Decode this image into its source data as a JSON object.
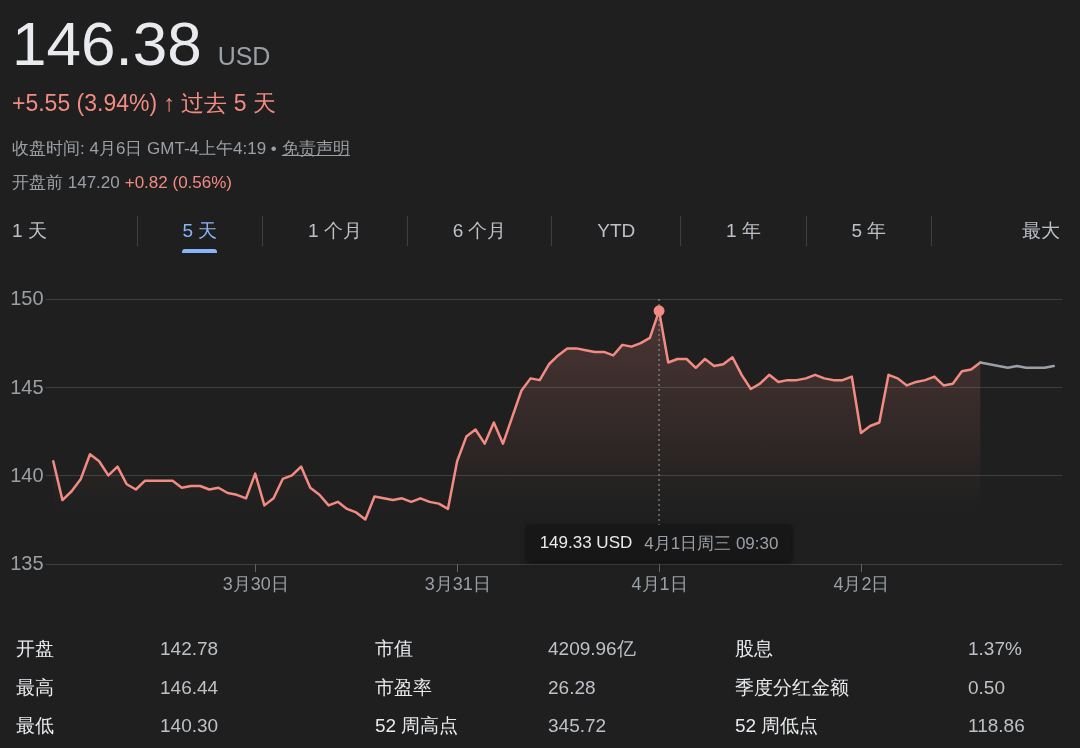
{
  "chart_data": {
    "type": "area",
    "title": "146.38 USD",
    "subtitle": "+5.55 (3.94%) ↑ 过去 5 天",
    "annotations": [
      "收盘时间: 4月6日 GMT-4上午4:19 •",
      "免责声明",
      "开盘前 147.20",
      "+0.82 (0.56%)",
      "1 天",
      "5 天",
      "1 个月",
      "6 个月",
      "YTD",
      "1 年",
      "5 年",
      "最大",
      "149.33 USD",
      "4月1日周三 09:30",
      "开盘",
      "142.78",
      "市值",
      "4209.96亿",
      "股息",
      "1.37%",
      "最高",
      "146.44",
      "市盈率",
      "26.28",
      "季度分红金额",
      "0.50",
      "最低",
      "140.30",
      "52 周高点",
      "345.72",
      "52 周低点",
      "118.86"
    ],
    "categories": [
      null,
      null,
      null,
      null,
      null,
      null,
      null,
      null,
      null,
      null,
      null,
      null,
      null,
      null,
      null,
      null,
      null,
      null,
      null,
      null,
      null,
      null,
      "3月30日",
      null,
      null,
      null,
      null,
      null,
      null,
      null,
      null,
      null,
      null,
      null,
      null,
      null,
      null,
      null,
      null,
      null,
      null,
      null,
      null,
      null,
      "3月31日",
      null,
      null,
      null,
      null,
      null,
      null,
      null,
      null,
      null,
      null,
      null,
      null,
      null,
      null,
      null,
      null,
      null,
      null,
      null,
      null,
      null,
      "4月1日",
      null,
      null,
      null,
      null,
      null,
      null,
      null,
      null,
      null,
      null,
      null,
      null,
      null,
      null,
      null,
      null,
      null,
      null,
      null,
      null,
      null,
      "4月2日",
      null,
      null,
      null,
      null,
      null,
      null,
      null,
      null,
      null,
      null,
      null,
      null,
      null,
      null,
      null,
      null,
      null,
      null,
      null,
      null,
      null
    ],
    "ylim": [
      135,
      150
    ],
    "yticks": [
      135,
      140,
      145,
      150
    ],
    "grid": "y",
    "ref_lines": [
      {
        "axis": "x",
        "value": "4月1日",
        "color": "#9aa0a6",
        "line_style": "dotted"
      }
    ],
    "series": [
      {
        "color": "#f28b82",
        "values": [
          140.8,
          138.6,
          139.1,
          139.8,
          141.2,
          140.8,
          140.0,
          140.5,
          139.5,
          139.2,
          139.7,
          139.7,
          139.7,
          139.7,
          139.3,
          139.4,
          139.4,
          139.2,
          139.3,
          139.0,
          138.9,
          138.7,
          140.1,
          138.3,
          138.7,
          139.8,
          140.0,
          140.5,
          139.3,
          138.9,
          138.3,
          138.5,
          138.1,
          137.9,
          137.5,
          138.8,
          138.7,
          138.6,
          138.7,
          138.5,
          138.7,
          138.5,
          138.4,
          138.1,
          140.8,
          142.2,
          142.6,
          141.8,
          143.0,
          141.8,
          143.3,
          144.8,
          145.5,
          145.4,
          146.3,
          146.8,
          147.2,
          147.2,
          147.1,
          147.0,
          147.0,
          146.8,
          147.4,
          147.3,
          147.5,
          147.8,
          149.33,
          146.4,
          146.6,
          146.6,
          146.1,
          146.6,
          146.2,
          146.3,
          146.7,
          145.7,
          144.9,
          145.2,
          145.7,
          145.3,
          145.4,
          145.4,
          145.5,
          145.7,
          145.5,
          145.4,
          145.4,
          145.6,
          142.4,
          142.8,
          143.0,
          145.7,
          145.5,
          145.1,
          145.3,
          145.4,
          145.6,
          145.1,
          145.2,
          145.9,
          146.0,
          146.4,
          null,
          null,
          null,
          null,
          null,
          null,
          null,
          null
        ]
      },
      {
        "type": "line",
        "color": "#9aa0a6",
        "values": [
          null,
          null,
          null,
          null,
          null,
          null,
          null,
          null,
          null,
          null,
          null,
          null,
          null,
          null,
          null,
          null,
          null,
          null,
          null,
          null,
          null,
          null,
          null,
          null,
          null,
          null,
          null,
          null,
          null,
          null,
          null,
          null,
          null,
          null,
          null,
          null,
          null,
          null,
          null,
          null,
          null,
          null,
          null,
          null,
          null,
          null,
          null,
          null,
          null,
          null,
          null,
          null,
          null,
          null,
          null,
          null,
          null,
          null,
          null,
          null,
          null,
          null,
          null,
          null,
          null,
          null,
          null,
          null,
          null,
          null,
          null,
          null,
          null,
          null,
          null,
          null,
          null,
          null,
          null,
          null,
          null,
          null,
          null,
          null,
          null,
          null,
          null,
          null,
          null,
          null,
          null,
          null,
          null,
          null,
          null,
          null,
          null,
          null,
          null,
          null,
          null,
          146.4,
          146.3,
          146.2,
          146.1,
          146.2,
          146.1,
          146.1,
          146.1,
          146.2
        ]
      },
      {
        "type": "scatter",
        "color": "#f28b82",
        "values": [
          null,
          null,
          null,
          null,
          null,
          null,
          null,
          null,
          null,
          null,
          null,
          null,
          null,
          null,
          null,
          null,
          null,
          null,
          null,
          null,
          null,
          null,
          null,
          null,
          null,
          null,
          null,
          null,
          null,
          null,
          null,
          null,
          null,
          null,
          null,
          null,
          null,
          null,
          null,
          null,
          null,
          null,
          null,
          null,
          null,
          null,
          null,
          null,
          null,
          null,
          null,
          null,
          null,
          null,
          null,
          null,
          null,
          null,
          null,
          null,
          null,
          null,
          null,
          null,
          null,
          null,
          149.33,
          null,
          null,
          null,
          null,
          null,
          null,
          null,
          null,
          null,
          null,
          null,
          null,
          null,
          null,
          null,
          null,
          null,
          null,
          null,
          null,
          null,
          null,
          null,
          null,
          null,
          null,
          null,
          null,
          null,
          null,
          null,
          null,
          null,
          null,
          null,
          null,
          null,
          null,
          null,
          null,
          null,
          null,
          null
        ]
      }
    ]
  }
}
